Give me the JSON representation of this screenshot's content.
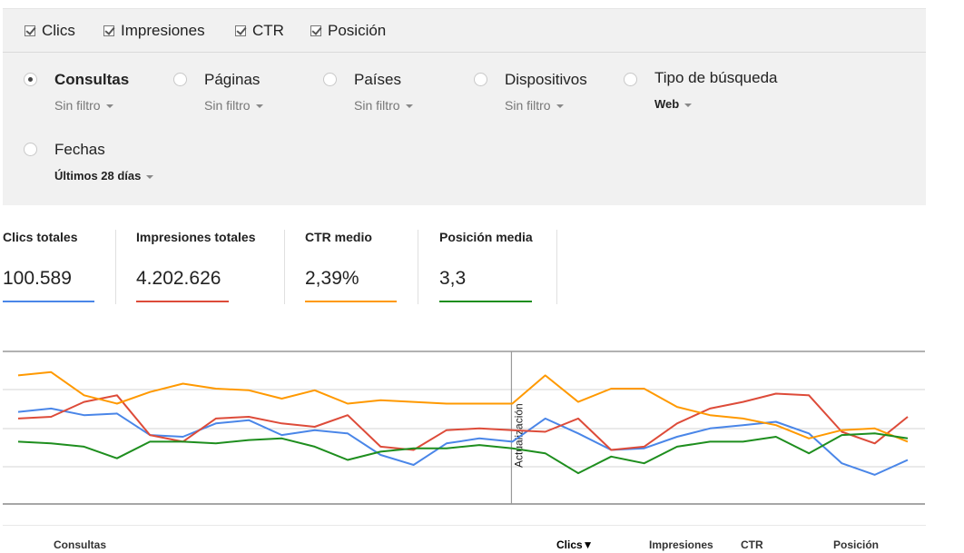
{
  "metrics": [
    {
      "label": "Clics",
      "checked": true
    },
    {
      "label": "Impresiones",
      "checked": true
    },
    {
      "label": "CTR",
      "checked": true
    },
    {
      "label": "Posición",
      "checked": true
    }
  ],
  "filters": [
    {
      "label": "Consultas",
      "value": "Sin filtro",
      "selected": true
    },
    {
      "label": "Páginas",
      "value": "Sin filtro",
      "selected": false
    },
    {
      "label": "Países",
      "value": "Sin filtro",
      "selected": false
    },
    {
      "label": "Dispositivos",
      "value": "Sin filtro",
      "selected": false
    },
    {
      "label": "Tipo de búsqueda",
      "value": "Web",
      "selected": false
    },
    {
      "label": "Fechas",
      "value": "Últimos 28 días",
      "selected": false
    }
  ],
  "stats": [
    {
      "title": "Clics totales",
      "value": "100.589",
      "color": "#4a86e8"
    },
    {
      "title": "Impresiones totales",
      "value": "4.202.626",
      "color": "#dd4b39"
    },
    {
      "title": "CTR medio",
      "value": "2,39%",
      "color": "#ff9900"
    },
    {
      "title": "Posición media",
      "value": "3,3",
      "color": "#1e8e1e"
    }
  ],
  "chart_data": {
    "type": "line",
    "annotation": "Actualización",
    "annotation_index": 15,
    "series": [
      {
        "name": "Clics",
        "color": "#4a86e8",
        "values": [
          49,
          51,
          47,
          48,
          35,
          34,
          42,
          44,
          35,
          38,
          36,
          23,
          17,
          30,
          33,
          31,
          45,
          36,
          26,
          27,
          34,
          39,
          41,
          43,
          36,
          18,
          11,
          20
        ]
      },
      {
        "name": "Impresiones",
        "color": "#dd4b39",
        "values": [
          45,
          46,
          55,
          59,
          35,
          31,
          45,
          46,
          42,
          40,
          47,
          28,
          26,
          38,
          39,
          38,
          37,
          45,
          26,
          28,
          42,
          51,
          55,
          60,
          59,
          37,
          30,
          46
        ]
      },
      {
        "name": "CTR",
        "color": "#ff9900",
        "values": [
          71,
          73,
          59,
          54,
          61,
          66,
          63,
          62,
          57,
          62,
          54,
          56,
          55,
          54,
          54,
          54,
          71,
          55,
          63,
          63,
          52,
          47,
          45,
          41,
          33,
          38,
          39,
          31
        ]
      },
      {
        "name": "Posición",
        "color": "#1e8e1e",
        "values": [
          31,
          30,
          28,
          21,
          31,
          31,
          30,
          32,
          33,
          28,
          20,
          25,
          27,
          27,
          29,
          27,
          24,
          12,
          22,
          18,
          28,
          31,
          31,
          34,
          24,
          35,
          36,
          33
        ]
      }
    ]
  },
  "table_headers": {
    "queries": "Consultas",
    "clicks": "Clics▼",
    "impressions": "Impresiones",
    "ctr": "CTR",
    "position": "Posición"
  }
}
